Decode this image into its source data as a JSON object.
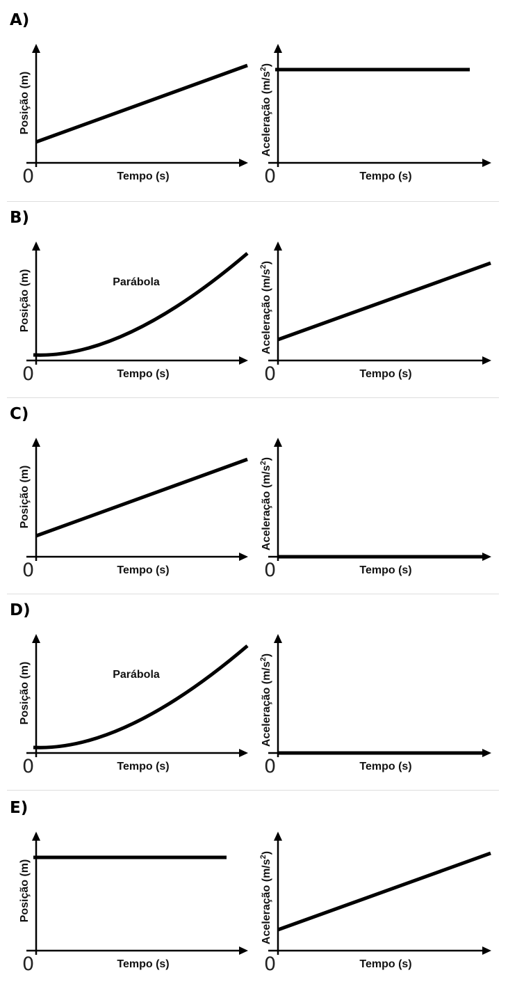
{
  "options": [
    {
      "letter": "A)",
      "left": {
        "y_label": "Posição (m)",
        "x_label": "Tempo (s)",
        "origin": "0",
        "curve": "linear-increasing",
        "annotation": ""
      },
      "right": {
        "y_label": "Aceleração (m/s",
        "y_label_sup": "2",
        "y_label_end": ")",
        "x_label": "Tempo (s)",
        "origin": "0",
        "curve": "constant-positive"
      }
    },
    {
      "letter": "B)",
      "left": {
        "y_label": "Posição (m)",
        "x_label": "Tempo (s)",
        "origin": "0",
        "curve": "parabola",
        "annotation": "Parábola"
      },
      "right": {
        "y_label": "Aceleração (m/s",
        "y_label_sup": "2",
        "y_label_end": ")",
        "x_label": "Tempo (s)",
        "origin": "0",
        "curve": "linear-increasing"
      }
    },
    {
      "letter": "C)",
      "left": {
        "y_label": "Posição (m)",
        "x_label": "Tempo (s)",
        "origin": "0",
        "curve": "linear-increasing",
        "annotation": ""
      },
      "right": {
        "y_label": "Aceleração (m/s",
        "y_label_sup": "2",
        "y_label_end": ")",
        "x_label": "Tempo (s)",
        "origin": "0",
        "curve": "zero"
      }
    },
    {
      "letter": "D)",
      "left": {
        "y_label": "Posição (m)",
        "x_label": "Tempo (s)",
        "origin": "0",
        "curve": "parabola",
        "annotation": "Parábola"
      },
      "right": {
        "y_label": "Aceleração (m/s",
        "y_label_sup": "2",
        "y_label_end": ")",
        "x_label": "Tempo (s)",
        "origin": "0",
        "curve": "zero"
      }
    },
    {
      "letter": "E)",
      "left": {
        "y_label": "Posição (m)",
        "x_label": "Tempo (s)",
        "origin": "0",
        "curve": "constant-positive",
        "annotation": ""
      },
      "right": {
        "y_label": "Aceleração (m/s",
        "y_label_sup": "2",
        "y_label_end": ")",
        "x_label": "Tempo (s)",
        "origin": "0",
        "curve": "linear-increasing"
      }
    }
  ]
}
